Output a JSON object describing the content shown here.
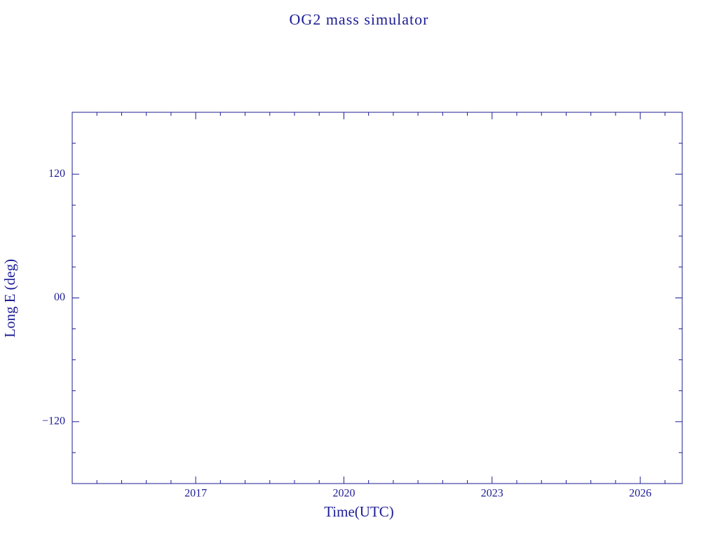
{
  "chart_data": {
    "type": "line",
    "title": "OG2 mass simulator",
    "xlabel": "Time(UTC)",
    "ylabel": "Long E (deg)",
    "xlim": [
      2014.5,
      2026.85
    ],
    "ylim": [
      -180,
      180
    ],
    "xticks": [
      2017,
      2020,
      2023,
      2026
    ],
    "yticks": [
      {
        "value": -120,
        "label": "−120"
      },
      {
        "value": 0,
        "label": "00"
      },
      {
        "value": 120,
        "label": "120"
      }
    ],
    "xminorticks": [
      2015,
      2015.5,
      2016,
      2016.5,
      2017.5,
      2018,
      2018.5,
      2019,
      2019.5,
      2020.5,
      2021,
      2021.5,
      2022,
      2022.5,
      2023.5,
      2024,
      2024.5,
      2025,
      2025.5,
      2026.5
    ],
    "yminorticks": [
      -150,
      -90,
      -60,
      -30,
      30,
      60,
      90,
      150
    ],
    "series": []
  }
}
